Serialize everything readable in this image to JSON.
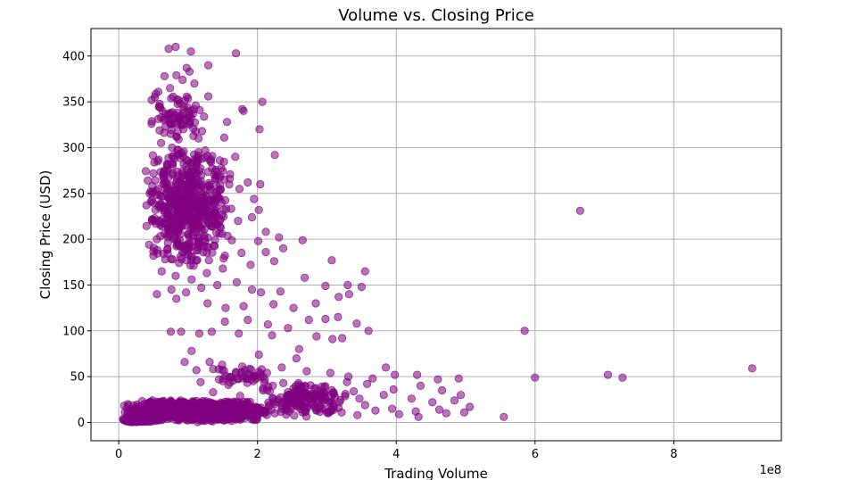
{
  "chart_data": {
    "type": "scatter",
    "title": "Volume vs. Closing Price",
    "xlabel": "Trading Volume",
    "ylabel": "Closing Price (USD)",
    "x_offset_label": "1e8",
    "xlim": [
      -0.4,
      9.55
    ],
    "ylim": [
      -20,
      430
    ],
    "x_ticks": [
      0,
      2,
      4,
      6,
      8
    ],
    "x_tick_labels": [
      "0",
      "2",
      "4",
      "6",
      "8"
    ],
    "y_ticks": [
      0,
      50,
      100,
      150,
      200,
      250,
      300,
      350,
      400
    ],
    "y_tick_labels": [
      "0",
      "50",
      "100",
      "150",
      "200",
      "250",
      "300",
      "350",
      "400"
    ],
    "grid": true,
    "marker_color": "#800080",
    "marker_alpha": 0.55,
    "points": [
      [
        0.72,
        408
      ],
      [
        0.82,
        410
      ],
      [
        1.04,
        405
      ],
      [
        1.69,
        403
      ],
      [
        1.29,
        390
      ],
      [
        0.98,
        387
      ],
      [
        1.02,
        383
      ],
      [
        0.83,
        379
      ],
      [
        0.66,
        378
      ],
      [
        1.09,
        370
      ],
      [
        0.92,
        374
      ],
      [
        0.57,
        361
      ],
      [
        0.74,
        365
      ],
      [
        0.52,
        355
      ],
      [
        0.86,
        352
      ],
      [
        1.29,
        356
      ],
      [
        0.58,
        345
      ],
      [
        0.99,
        344
      ],
      [
        0.63,
        340
      ],
      [
        1.07,
        337
      ],
      [
        1.23,
        334
      ],
      [
        0.73,
        330
      ],
      [
        1.02,
        325
      ],
      [
        2.07,
        350
      ],
      [
        1.8,
        340
      ],
      [
        1.78,
        342
      ],
      [
        1.2,
        318
      ],
      [
        1.56,
        328
      ],
      [
        0.83,
        312
      ],
      [
        2.03,
        320
      ],
      [
        1.15,
        310
      ],
      [
        0.61,
        305
      ],
      [
        0.77,
        300
      ],
      [
        0.91,
        294
      ],
      [
        1.28,
        291
      ],
      [
        1.52,
        311
      ],
      [
        0.56,
        285
      ],
      [
        0.7,
        280
      ],
      [
        0.99,
        276
      ],
      [
        1.33,
        284
      ],
      [
        1.68,
        290
      ],
      [
        2.25,
        292
      ],
      [
        0.5,
        272
      ],
      [
        0.64,
        268
      ],
      [
        0.87,
        263
      ],
      [
        1.06,
        258
      ],
      [
        1.38,
        270
      ],
      [
        1.6,
        266
      ],
      [
        1.86,
        262
      ],
      [
        0.46,
        252
      ],
      [
        0.59,
        248
      ],
      [
        0.74,
        244
      ],
      [
        0.95,
        240
      ],
      [
        1.17,
        237
      ],
      [
        1.43,
        246
      ],
      [
        1.74,
        255
      ],
      [
        2.04,
        260
      ],
      [
        0.4,
        237
      ],
      [
        0.53,
        232
      ],
      [
        0.7,
        228
      ],
      [
        0.89,
        224
      ],
      [
        1.11,
        221
      ],
      [
        1.32,
        226
      ],
      [
        1.55,
        233
      ],
      [
        1.95,
        244
      ],
      [
        2.02,
        232
      ],
      [
        0.48,
        220
      ],
      [
        0.62,
        214
      ],
      [
        0.8,
        210
      ],
      [
        1.0,
        206
      ],
      [
        1.23,
        204
      ],
      [
        1.46,
        214
      ],
      [
        1.72,
        220
      ],
      [
        1.92,
        224
      ],
      [
        2.12,
        208
      ],
      [
        0.55,
        200
      ],
      [
        0.71,
        196
      ],
      [
        0.93,
        191
      ],
      [
        1.14,
        188
      ],
      [
        1.37,
        193
      ],
      [
        1.63,
        199
      ],
      [
        2.01,
        198
      ],
      [
        2.31,
        202
      ],
      [
        2.65,
        199
      ],
      [
        0.5,
        182
      ],
      [
        0.67,
        178
      ],
      [
        0.87,
        174
      ],
      [
        1.08,
        171
      ],
      [
        1.3,
        177
      ],
      [
        1.53,
        182
      ],
      [
        1.77,
        185
      ],
      [
        2.12,
        186
      ],
      [
        2.37,
        190
      ],
      [
        0.62,
        165
      ],
      [
        0.82,
        160
      ],
      [
        1.05,
        156
      ],
      [
        1.27,
        163
      ],
      [
        1.5,
        168
      ],
      [
        1.9,
        172
      ],
      [
        2.24,
        176
      ],
      [
        3.07,
        177
      ],
      [
        3.55,
        165
      ],
      [
        0.55,
        140
      ],
      [
        0.76,
        145
      ],
      [
        0.97,
        142
      ],
      [
        1.19,
        147
      ],
      [
        1.42,
        150
      ],
      [
        1.7,
        153
      ],
      [
        1.92,
        145
      ],
      [
        2.05,
        142
      ],
      [
        2.33,
        143
      ],
      [
        2.68,
        158
      ],
      [
        2.98,
        149
      ],
      [
        3.3,
        150
      ],
      [
        3.5,
        148
      ],
      [
        0.83,
        135
      ],
      [
        1.28,
        130
      ],
      [
        1.54,
        125
      ],
      [
        1.8,
        127
      ],
      [
        2.23,
        129
      ],
      [
        2.52,
        125
      ],
      [
        2.84,
        130
      ],
      [
        3.17,
        137
      ],
      [
        3.32,
        140
      ],
      [
        1.53,
        110
      ],
      [
        1.86,
        112
      ],
      [
        2.15,
        107
      ],
      [
        2.44,
        103
      ],
      [
        2.74,
        112
      ],
      [
        2.98,
        113
      ],
      [
        3.16,
        115
      ],
      [
        3.43,
        108
      ],
      [
        3.6,
        100
      ],
      [
        0.75,
        99
      ],
      [
        0.9,
        99
      ],
      [
        1.16,
        97
      ],
      [
        1.34,
        99
      ],
      [
        1.73,
        97
      ],
      [
        2.21,
        95
      ],
      [
        2.85,
        94
      ],
      [
        3.08,
        91
      ],
      [
        3.22,
        92
      ],
      [
        1.05,
        78
      ],
      [
        2.02,
        74
      ],
      [
        2.6,
        80
      ],
      [
        2.56,
        70
      ],
      [
        1.31,
        66
      ],
      [
        1.49,
        63
      ],
      [
        0.95,
        66
      ],
      [
        1.12,
        57
      ],
      [
        1.44,
        58
      ],
      [
        1.78,
        61
      ],
      [
        2.06,
        58
      ],
      [
        2.35,
        60
      ],
      [
        2.71,
        56
      ],
      [
        3.05,
        54
      ],
      [
        3.31,
        50
      ],
      [
        3.66,
        48
      ],
      [
        3.85,
        60
      ],
      [
        3.98,
        52
      ],
      [
        4.3,
        52
      ],
      [
        4.6,
        47
      ],
      [
        4.9,
        48
      ],
      [
        5.85,
        100
      ],
      [
        6.0,
        49
      ],
      [
        6.65,
        231
      ],
      [
        7.05,
        52
      ],
      [
        7.26,
        49
      ],
      [
        9.13,
        59
      ],
      [
        1.18,
        44
      ],
      [
        1.58,
        41
      ],
      [
        1.94,
        45
      ],
      [
        2.22,
        40
      ],
      [
        2.59,
        43
      ],
      [
        2.93,
        39
      ],
      [
        3.29,
        44
      ],
      [
        3.58,
        42
      ],
      [
        3.96,
        36
      ],
      [
        4.35,
        40
      ],
      [
        4.66,
        35
      ],
      [
        4.93,
        30
      ],
      [
        1.36,
        33
      ],
      [
        1.75,
        29
      ],
      [
        2.08,
        35
      ],
      [
        2.44,
        33
      ],
      [
        2.75,
        29
      ],
      [
        3.1,
        31
      ],
      [
        3.47,
        26
      ],
      [
        3.82,
        30
      ],
      [
        4.22,
        26
      ],
      [
        4.52,
        22
      ],
      [
        4.84,
        24
      ],
      [
        5.06,
        17
      ],
      [
        2.4,
        24
      ],
      [
        2.87,
        20
      ],
      [
        3.18,
        22
      ],
      [
        3.55,
        19
      ],
      [
        3.94,
        15
      ],
      [
        4.28,
        12
      ],
      [
        4.62,
        14
      ],
      [
        4.98,
        11
      ],
      [
        3.02,
        10
      ],
      [
        3.44,
        8
      ],
      [
        3.7,
        13
      ],
      [
        4.04,
        9
      ],
      [
        4.32,
        6
      ],
      [
        4.72,
        10
      ],
      [
        5.55,
        6
      ],
      [
        0.1,
        2
      ],
      [
        0.2,
        3
      ],
      [
        0.3,
        2
      ],
      [
        0.4,
        4
      ],
      [
        0.5,
        3
      ],
      [
        0.6,
        5
      ],
      [
        0.7,
        4
      ],
      [
        0.8,
        6
      ],
      [
        0.9,
        5
      ],
      [
        1.0,
        7
      ],
      [
        1.1,
        6
      ],
      [
        1.2,
        8
      ],
      [
        1.35,
        7
      ],
      [
        1.5,
        9
      ],
      [
        1.65,
        8
      ],
      [
        1.8,
        10
      ],
      [
        1.95,
        9
      ],
      [
        2.1,
        11
      ],
      [
        2.25,
        10
      ],
      [
        2.45,
        12
      ],
      [
        2.65,
        11
      ],
      [
        2.85,
        13
      ],
      [
        3.05,
        12
      ],
      [
        0.2,
        8
      ],
      [
        0.35,
        10
      ],
      [
        0.5,
        12
      ],
      [
        0.65,
        14
      ],
      [
        0.8,
        15
      ],
      [
        0.95,
        16
      ],
      [
        1.1,
        17
      ],
      [
        1.25,
        18
      ],
      [
        1.4,
        16
      ],
      [
        1.55,
        15
      ],
      [
        1.7,
        14
      ],
      [
        1.85,
        13
      ],
      [
        2.0,
        12
      ],
      [
        0.45,
        18
      ],
      [
        0.6,
        20
      ],
      [
        0.75,
        21
      ],
      [
        0.9,
        22
      ],
      [
        1.05,
        20
      ],
      [
        1.2,
        19
      ],
      [
        1.35,
        21
      ],
      [
        1.5,
        20
      ],
      [
        1.65,
        18
      ],
      [
        0.55,
        8
      ],
      [
        0.7,
        7
      ],
      [
        0.85,
        9
      ],
      [
        1.0,
        10
      ],
      [
        1.15,
        12
      ],
      [
        1.3,
        11
      ],
      [
        1.45,
        10
      ],
      [
        1.6,
        12
      ],
      [
        1.75,
        13
      ],
      [
        1.9,
        15
      ],
      [
        2.05,
        16
      ],
      [
        2.2,
        14
      ],
      [
        2.35,
        15
      ]
    ],
    "clusters": [
      {
        "x": [
          0.35,
          1.65
        ],
        "y": [
          170,
          305
        ],
        "n": 520
      },
      {
        "x": [
          0.45,
          1.2
        ],
        "y": [
          305,
          360
        ],
        "n": 70
      },
      {
        "x": [
          0.05,
          2.2
        ],
        "y": [
          0,
          25
        ],
        "n": 1000
      },
      {
        "x": [
          0.02,
          0.6
        ],
        "y": [
          0,
          5
        ],
        "n": 160
      },
      {
        "x": [
          1.9,
          3.4
        ],
        "y": [
          5,
          45
        ],
        "n": 160
      },
      {
        "x": [
          1.3,
          2.2
        ],
        "y": [
          40,
          60
        ],
        "n": 40
      }
    ]
  }
}
